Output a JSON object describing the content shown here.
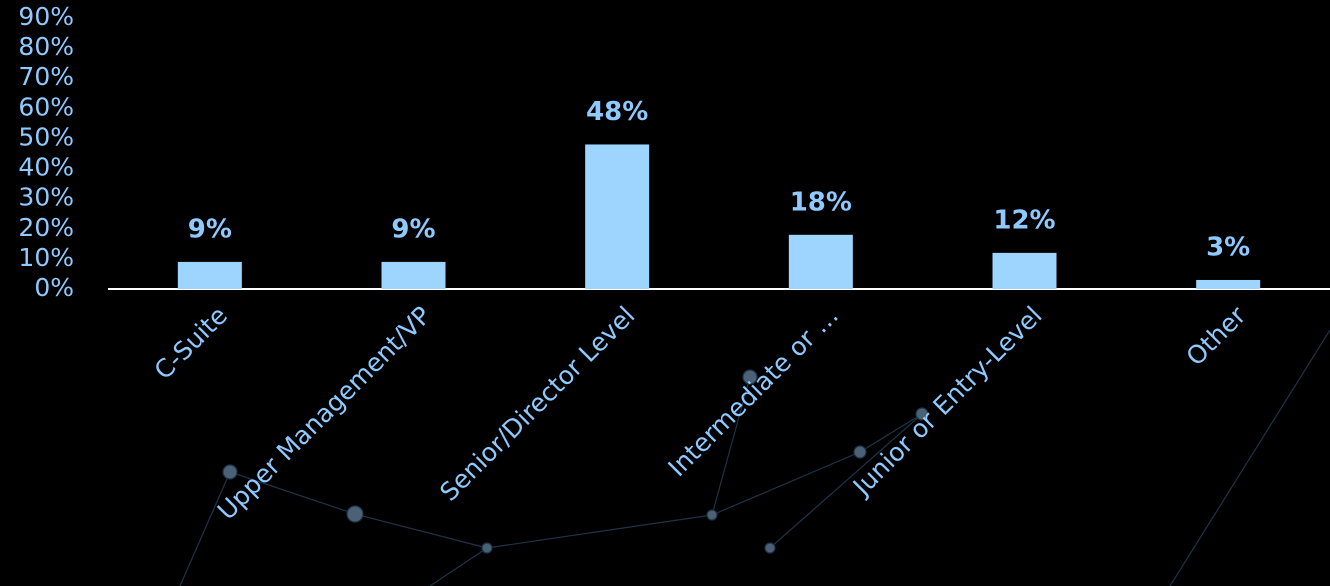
{
  "chart_data": {
    "type": "bar",
    "categories": [
      "C-Suite",
      "Upper Management/VP",
      "Senior/Director Level",
      "Intermediate or …",
      "Junior or Entry-Level",
      "Other"
    ],
    "values": [
      9,
      9,
      48,
      18,
      12,
      3
    ],
    "value_labels": [
      "9%",
      "9%",
      "48%",
      "18%",
      "12%",
      "3%"
    ],
    "color": "#9dd5ff",
    "ylim": [
      0,
      90
    ],
    "yticks": [
      {
        "value": 0,
        "label": "0%"
      },
      {
        "value": 10,
        "label": "10%"
      },
      {
        "value": 20,
        "label": "20%"
      },
      {
        "value": 30,
        "label": "30%"
      },
      {
        "value": 40,
        "label": "40%"
      },
      {
        "value": 50,
        "label": "50%"
      },
      {
        "value": 60,
        "label": "60%"
      },
      {
        "value": 70,
        "label": "70%"
      },
      {
        "value": 80,
        "label": "80%"
      },
      {
        "value": 90,
        "label": "90%"
      }
    ],
    "grid": false
  }
}
